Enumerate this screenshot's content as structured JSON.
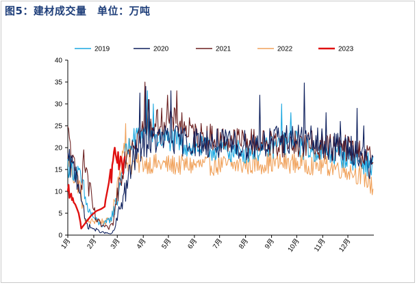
{
  "title": "图5：建材成交量　单位：万吨",
  "colors": {
    "2019": "#1aa7e0",
    "2020": "#0d1f5c",
    "2021": "#6b1f1f",
    "2022": "#f0a15a",
    "2023": "#e01010",
    "title": "#1f3f7a"
  },
  "chart_data": {
    "type": "line",
    "title": "图5：建材成交量　单位：万吨",
    "xlabel": "",
    "ylabel": "",
    "ylim": [
      0,
      40
    ],
    "yticks": [
      "0",
      "5",
      "10",
      "15",
      "20",
      "25",
      "30",
      "35",
      "40"
    ],
    "xlim": [
      0,
      365
    ],
    "xticks": [
      "1月",
      "2月",
      "3月",
      "4月",
      "5月",
      "6月",
      "7月",
      "8月",
      "9月",
      "10月",
      "11月",
      "12月"
    ],
    "legend_position": "top",
    "series": [
      {
        "name": "2019",
        "color": "#1aa7e0",
        "keypoints": [
          [
            0,
            16
          ],
          [
            5,
            15.5
          ],
          [
            12,
            14
          ],
          [
            18,
            11
          ],
          [
            22,
            7
          ],
          [
            27,
            5
          ],
          [
            33,
            3.5
          ],
          [
            38,
            2.5
          ],
          [
            42,
            2.2
          ],
          [
            46,
            2.8
          ],
          [
            50,
            3.5
          ],
          [
            55,
            5.5
          ],
          [
            60,
            9
          ],
          [
            63,
            13
          ],
          [
            66,
            16
          ],
          [
            70,
            19
          ],
          [
            75,
            21
          ],
          [
            80,
            22
          ],
          [
            85,
            23
          ],
          [
            90,
            23.5
          ],
          [
            95,
            24
          ],
          [
            105,
            22
          ],
          [
            120,
            22
          ],
          [
            150,
            20
          ],
          [
            180,
            19.5
          ],
          [
            210,
            19
          ],
          [
            240,
            20
          ],
          [
            260,
            21
          ],
          [
            270,
            21.5
          ],
          [
            280,
            20
          ],
          [
            300,
            19
          ],
          [
            320,
            18.5
          ],
          [
            340,
            17.5
          ],
          [
            355,
            16.5
          ],
          [
            364,
            15.5
          ]
        ],
        "noise": 2.8,
        "spikes": [
          [
            95,
            33
          ],
          [
            102,
            30
          ],
          [
            255,
            30
          ],
          [
            266,
            28
          ]
        ]
      },
      {
        "name": "2020",
        "color": "#0d1f5c",
        "keypoints": [
          [
            0,
            16.5
          ],
          [
            5,
            15.5
          ],
          [
            10,
            14
          ],
          [
            15,
            11
          ],
          [
            18,
            6
          ],
          [
            21,
            3
          ],
          [
            25,
            2
          ],
          [
            30,
            1.5
          ],
          [
            36,
            1
          ],
          [
            42,
            0.6
          ],
          [
            48,
            0.4
          ],
          [
            52,
            0.3
          ],
          [
            55,
            1
          ],
          [
            58,
            3
          ],
          [
            62,
            6
          ],
          [
            66,
            9
          ],
          [
            70,
            11
          ],
          [
            73,
            13
          ],
          [
            76,
            16
          ],
          [
            82,
            19
          ],
          [
            90,
            21
          ],
          [
            110,
            22
          ],
          [
            140,
            21.5
          ],
          [
            170,
            21
          ],
          [
            200,
            20.5
          ],
          [
            230,
            21
          ],
          [
            260,
            22
          ],
          [
            280,
            22
          ],
          [
            300,
            21
          ],
          [
            320,
            20
          ],
          [
            340,
            19.5
          ],
          [
            355,
            17
          ],
          [
            364,
            14.5
          ]
        ],
        "noise": 3.5,
        "spikes": [
          [
            86,
            32.5
          ],
          [
            93,
            34
          ],
          [
            97,
            31
          ],
          [
            123,
            33
          ],
          [
            229,
            32
          ],
          [
            282,
            34.8
          ],
          [
            345,
            29
          ],
          [
            353,
            25
          ],
          [
            325,
            26
          ],
          [
            308,
            28
          ]
        ]
      },
      {
        "name": "2021",
        "color": "#6b1f1f",
        "keypoints": [
          [
            0,
            23
          ],
          [
            3,
            21
          ],
          [
            6,
            16
          ],
          [
            9,
            14
          ],
          [
            12,
            13
          ],
          [
            16,
            12
          ],
          [
            19,
            16.5
          ],
          [
            22,
            15.5
          ],
          [
            25,
            11
          ],
          [
            28,
            8
          ],
          [
            33,
            4
          ],
          [
            38,
            2.5
          ],
          [
            43,
            2
          ],
          [
            48,
            1.5
          ],
          [
            52,
            2
          ],
          [
            55,
            3.5
          ],
          [
            58,
            8
          ],
          [
            62,
            13
          ],
          [
            66,
            16
          ],
          [
            70,
            19
          ],
          [
            75,
            21
          ],
          [
            80,
            22
          ],
          [
            90,
            24
          ],
          [
            100,
            25
          ],
          [
            110,
            26
          ],
          [
            130,
            26
          ],
          [
            150,
            23
          ],
          [
            180,
            22
          ],
          [
            210,
            21.5
          ],
          [
            240,
            21
          ],
          [
            270,
            21
          ],
          [
            300,
            20.5
          ],
          [
            330,
            20
          ],
          [
            355,
            18.5
          ],
          [
            364,
            17
          ]
        ],
        "noise": 3.2,
        "spikes": [
          [
            92,
            35
          ],
          [
            96,
            31
          ],
          [
            119,
            32
          ],
          [
            130,
            33
          ],
          [
            136,
            28
          ]
        ]
      },
      {
        "name": "2022",
        "color": "#f0a15a",
        "keypoints": [
          [
            0,
            17.5
          ],
          [
            3,
            16
          ],
          [
            7,
            13.5
          ],
          [
            11,
            12
          ],
          [
            15,
            11
          ],
          [
            18,
            6
          ],
          [
            21,
            3.5
          ],
          [
            25,
            3
          ],
          [
            30,
            3.2
          ],
          [
            35,
            3.3
          ],
          [
            40,
            3.2
          ],
          [
            45,
            3
          ],
          [
            50,
            3.5
          ],
          [
            53,
            4
          ],
          [
            56,
            8
          ],
          [
            60,
            13
          ],
          [
            63,
            15
          ],
          [
            66,
            21
          ],
          [
            69,
            17
          ],
          [
            75,
            16
          ],
          [
            90,
            16.5
          ],
          [
            120,
            16
          ],
          [
            150,
            16
          ],
          [
            180,
            16
          ],
          [
            210,
            16
          ],
          [
            240,
            16.5
          ],
          [
            270,
            16.5
          ],
          [
            300,
            16
          ],
          [
            320,
            15.5
          ],
          [
            340,
            14.5
          ],
          [
            355,
            13
          ],
          [
            364,
            11
          ]
        ],
        "noise": 2.4,
        "spikes": [
          [
            69,
            25.5
          ],
          [
            74,
            22
          ]
        ]
      },
      {
        "name": "2023",
        "color": "#e01010",
        "keypoints": [
          [
            0,
            10
          ],
          [
            1,
            11.5
          ],
          [
            2,
            8.5
          ],
          [
            4,
            9.5
          ],
          [
            5,
            8
          ],
          [
            6,
            8.5
          ],
          [
            7,
            7.5
          ],
          [
            9,
            7
          ],
          [
            11,
            6
          ],
          [
            13,
            5
          ],
          [
            14,
            4
          ],
          [
            15,
            3
          ],
          [
            16,
            1.5
          ],
          [
            18,
            2
          ],
          [
            22,
            3
          ],
          [
            28,
            4.5
          ],
          [
            34,
            5.5
          ],
          [
            40,
            6
          ],
          [
            44,
            6.5
          ],
          [
            45,
            8
          ],
          [
            47,
            10
          ],
          [
            49,
            12
          ],
          [
            51,
            15
          ],
          [
            52,
            12
          ],
          [
            53,
            16
          ],
          [
            54,
            17
          ],
          [
            55,
            19
          ],
          [
            56,
            20
          ],
          [
            57,
            18.5
          ],
          [
            58,
            17.5
          ],
          [
            59,
            16.5
          ],
          [
            60,
            19
          ],
          [
            61,
            15
          ],
          [
            62,
            16
          ],
          [
            63,
            18
          ],
          [
            64,
            17.5
          ],
          [
            65,
            16
          ],
          [
            66,
            14
          ],
          [
            67,
            17
          ],
          [
            68,
            18
          ]
        ],
        "noise": 0,
        "spikes": []
      }
    ]
  }
}
